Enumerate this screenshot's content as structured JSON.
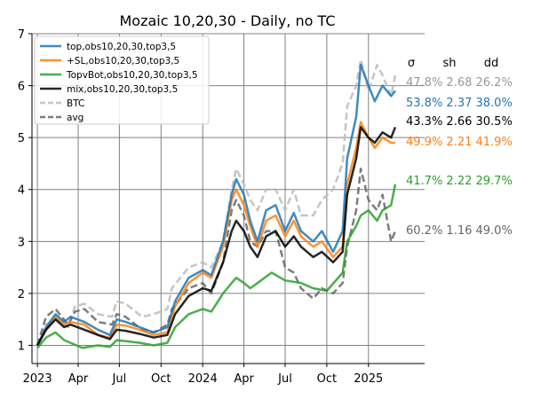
{
  "chart_data": {
    "type": "line",
    "title": "Mozaic 10,20,30 - Daily, no TC",
    "xlabel": "",
    "ylabel": "",
    "xlim": [
      "2022-12-20",
      "2025-05-05"
    ],
    "ylim": [
      0.65,
      7.0
    ],
    "grid": true,
    "legend_position": "top-left",
    "x_tick_labels": [
      {
        "date": "2023-01-01",
        "label": "2023"
      },
      {
        "date": "2023-04-01",
        "label": "Apr"
      },
      {
        "date": "2023-07-01",
        "label": "Jul"
      },
      {
        "date": "2023-10-01",
        "label": "Oct"
      },
      {
        "date": "2024-01-01",
        "label": "2024"
      },
      {
        "date": "2024-04-01",
        "label": "Apr"
      },
      {
        "date": "2024-07-01",
        "label": "Jul"
      },
      {
        "date": "2024-10-01",
        "label": "Oct"
      },
      {
        "date": "2025-01-01",
        "label": "2025"
      }
    ],
    "y_tick_labels": [
      "1",
      "2",
      "3",
      "4",
      "5",
      "6",
      "7"
    ],
    "stats_header": [
      "σ",
      "sh",
      "dd"
    ],
    "series": [
      {
        "name": "top,obs10,20,30,top3,5",
        "color": "#1f77b4",
        "style": "solid",
        "stats": "53.8% 2.37 38.0%",
        "points": [
          [
            "2023-01-01",
            1.0
          ],
          [
            "2023-01-20",
            1.35
          ],
          [
            "2023-02-10",
            1.6
          ],
          [
            "2023-03-01",
            1.45
          ],
          [
            "2023-03-15",
            1.55
          ],
          [
            "2023-04-15",
            1.45
          ],
          [
            "2023-05-15",
            1.3
          ],
          [
            "2023-06-10",
            1.2
          ],
          [
            "2023-06-25",
            1.5
          ],
          [
            "2023-07-15",
            1.45
          ],
          [
            "2023-08-15",
            1.35
          ],
          [
            "2023-09-15",
            1.25
          ],
          [
            "2023-10-15",
            1.35
          ],
          [
            "2023-11-01",
            1.85
          ],
          [
            "2023-12-01",
            2.3
          ],
          [
            "2024-01-01",
            2.45
          ],
          [
            "2024-01-20",
            2.35
          ],
          [
            "2024-02-15",
            3.0
          ],
          [
            "2024-03-05",
            3.9
          ],
          [
            "2024-03-15",
            4.2
          ],
          [
            "2024-04-01",
            3.9
          ],
          [
            "2024-04-15",
            3.4
          ],
          [
            "2024-05-01",
            3.0
          ],
          [
            "2024-05-20",
            3.6
          ],
          [
            "2024-06-10",
            3.7
          ],
          [
            "2024-07-01",
            3.2
          ],
          [
            "2024-07-20",
            3.55
          ],
          [
            "2024-08-05",
            3.2
          ],
          [
            "2024-09-01",
            3.0
          ],
          [
            "2024-09-20",
            3.2
          ],
          [
            "2024-10-15",
            2.8
          ],
          [
            "2024-11-05",
            3.2
          ],
          [
            "2024-11-15",
            4.6
          ],
          [
            "2024-12-05",
            5.4
          ],
          [
            "2024-12-15",
            6.4
          ],
          [
            "2025-01-01",
            6.0
          ],
          [
            "2025-01-15",
            5.7
          ],
          [
            "2025-02-01",
            6.0
          ],
          [
            "2025-02-20",
            5.8
          ],
          [
            "2025-03-01",
            5.9
          ]
        ]
      },
      {
        "name": "+SL,obs10,20,30,top3,5",
        "color": "#ff7f0e",
        "style": "solid",
        "stats": "49.9% 2.21 41.9%",
        "points": [
          [
            "2023-01-01",
            1.0
          ],
          [
            "2023-01-20",
            1.3
          ],
          [
            "2023-02-10",
            1.55
          ],
          [
            "2023-03-01",
            1.4
          ],
          [
            "2023-03-15",
            1.45
          ],
          [
            "2023-04-15",
            1.4
          ],
          [
            "2023-05-15",
            1.2
          ],
          [
            "2023-06-10",
            1.15
          ],
          [
            "2023-06-25",
            1.4
          ],
          [
            "2023-07-15",
            1.38
          ],
          [
            "2023-08-15",
            1.3
          ],
          [
            "2023-09-15",
            1.2
          ],
          [
            "2023-10-15",
            1.25
          ],
          [
            "2023-11-01",
            1.75
          ],
          [
            "2023-12-01",
            2.2
          ],
          [
            "2024-01-01",
            2.4
          ],
          [
            "2024-01-20",
            2.3
          ],
          [
            "2024-02-15",
            2.9
          ],
          [
            "2024-03-05",
            3.8
          ],
          [
            "2024-03-15",
            4.0
          ],
          [
            "2024-04-01",
            3.7
          ],
          [
            "2024-04-15",
            3.3
          ],
          [
            "2024-05-01",
            2.9
          ],
          [
            "2024-05-20",
            3.4
          ],
          [
            "2024-06-10",
            3.5
          ],
          [
            "2024-07-01",
            3.1
          ],
          [
            "2024-07-20",
            3.4
          ],
          [
            "2024-08-05",
            3.1
          ],
          [
            "2024-09-01",
            2.9
          ],
          [
            "2024-09-20",
            3.0
          ],
          [
            "2024-10-15",
            2.7
          ],
          [
            "2024-11-05",
            2.9
          ],
          [
            "2024-11-15",
            4.1
          ],
          [
            "2024-12-05",
            4.8
          ],
          [
            "2024-12-15",
            5.3
          ],
          [
            "2025-01-01",
            5.0
          ],
          [
            "2025-01-15",
            4.8
          ],
          [
            "2025-02-01",
            5.0
          ],
          [
            "2025-02-20",
            4.9
          ],
          [
            "2025-03-01",
            4.9
          ]
        ]
      },
      {
        "name": "TopvBot,obs10,20,30,top3,5",
        "color": "#2ca02c",
        "style": "solid",
        "stats": "41.7% 2.22 29.7%",
        "points": [
          [
            "2023-01-01",
            0.95
          ],
          [
            "2023-01-20",
            1.15
          ],
          [
            "2023-02-10",
            1.25
          ],
          [
            "2023-03-01",
            1.1
          ],
          [
            "2023-03-15",
            1.05
          ],
          [
            "2023-04-10",
            0.95
          ],
          [
            "2023-05-15",
            1.0
          ],
          [
            "2023-06-10",
            0.97
          ],
          [
            "2023-06-25",
            1.1
          ],
          [
            "2023-07-15",
            1.08
          ],
          [
            "2023-08-15",
            1.05
          ],
          [
            "2023-09-15",
            1.0
          ],
          [
            "2023-10-15",
            1.05
          ],
          [
            "2023-11-01",
            1.35
          ],
          [
            "2023-12-01",
            1.6
          ],
          [
            "2024-01-01",
            1.7
          ],
          [
            "2024-01-20",
            1.65
          ],
          [
            "2024-02-15",
            2.0
          ],
          [
            "2024-03-05",
            2.2
          ],
          [
            "2024-03-15",
            2.3
          ],
          [
            "2024-04-01",
            2.2
          ],
          [
            "2024-04-15",
            2.1
          ],
          [
            "2024-05-01",
            2.2
          ],
          [
            "2024-06-01",
            2.4
          ],
          [
            "2024-07-01",
            2.25
          ],
          [
            "2024-08-05",
            2.2
          ],
          [
            "2024-09-01",
            2.1
          ],
          [
            "2024-10-01",
            2.05
          ],
          [
            "2024-11-05",
            2.4
          ],
          [
            "2024-11-15",
            3.0
          ],
          [
            "2024-12-05",
            3.3
          ],
          [
            "2024-12-15",
            3.5
          ],
          [
            "2025-01-01",
            3.6
          ],
          [
            "2025-01-20",
            3.4
          ],
          [
            "2025-02-01",
            3.6
          ],
          [
            "2025-02-20",
            3.7
          ],
          [
            "2025-03-01",
            4.1
          ]
        ]
      },
      {
        "name": "mix,obs10,20,30,top3,5",
        "color": "#000000",
        "style": "solid",
        "stats": "43.3% 2.66 30.5%",
        "points": [
          [
            "2023-01-01",
            1.0
          ],
          [
            "2023-01-20",
            1.3
          ],
          [
            "2023-02-10",
            1.5
          ],
          [
            "2023-03-01",
            1.35
          ],
          [
            "2023-03-15",
            1.4
          ],
          [
            "2023-04-15",
            1.3
          ],
          [
            "2023-05-15",
            1.2
          ],
          [
            "2023-06-10",
            1.12
          ],
          [
            "2023-06-25",
            1.3
          ],
          [
            "2023-07-15",
            1.28
          ],
          [
            "2023-08-15",
            1.22
          ],
          [
            "2023-09-15",
            1.15
          ],
          [
            "2023-10-15",
            1.2
          ],
          [
            "2023-11-01",
            1.6
          ],
          [
            "2023-12-01",
            1.95
          ],
          [
            "2024-01-01",
            2.1
          ],
          [
            "2024-01-20",
            2.05
          ],
          [
            "2024-02-15",
            2.6
          ],
          [
            "2024-03-05",
            3.2
          ],
          [
            "2024-03-15",
            3.4
          ],
          [
            "2024-04-01",
            3.2
          ],
          [
            "2024-04-15",
            2.9
          ],
          [
            "2024-05-01",
            2.7
          ],
          [
            "2024-05-20",
            3.1
          ],
          [
            "2024-06-10",
            3.2
          ],
          [
            "2024-07-01",
            2.9
          ],
          [
            "2024-07-20",
            3.1
          ],
          [
            "2024-08-05",
            2.9
          ],
          [
            "2024-09-01",
            2.7
          ],
          [
            "2024-09-20",
            2.8
          ],
          [
            "2024-10-15",
            2.6
          ],
          [
            "2024-11-05",
            2.8
          ],
          [
            "2024-11-15",
            3.9
          ],
          [
            "2024-12-05",
            4.6
          ],
          [
            "2024-12-15",
            5.2
          ],
          [
            "2025-01-01",
            5.0
          ],
          [
            "2025-01-15",
            4.9
          ],
          [
            "2025-02-01",
            5.1
          ],
          [
            "2025-02-20",
            5.0
          ],
          [
            "2025-03-01",
            5.2
          ]
        ]
      },
      {
        "name": "BTC",
        "color": "#bbbbbb",
        "style": "dashed",
        "stats": "47.8% 2.68 26.2%",
        "points": [
          [
            "2023-01-01",
            1.0
          ],
          [
            "2023-01-20",
            1.4
          ],
          [
            "2023-02-10",
            1.5
          ],
          [
            "2023-03-10",
            1.35
          ],
          [
            "2023-03-25",
            1.75
          ],
          [
            "2023-04-15",
            1.8
          ],
          [
            "2023-05-15",
            1.6
          ],
          [
            "2023-06-15",
            1.55
          ],
          [
            "2023-06-25",
            1.85
          ],
          [
            "2023-07-15",
            1.8
          ],
          [
            "2023-08-20",
            1.55
          ],
          [
            "2023-09-15",
            1.6
          ],
          [
            "2023-10-15",
            1.7
          ],
          [
            "2023-10-25",
            2.1
          ],
          [
            "2023-12-01",
            2.5
          ],
          [
            "2024-01-01",
            2.6
          ],
          [
            "2024-01-20",
            2.5
          ],
          [
            "2024-02-15",
            3.0
          ],
          [
            "2024-03-05",
            4.0
          ],
          [
            "2024-03-15",
            4.4
          ],
          [
            "2024-04-01",
            4.1
          ],
          [
            "2024-04-15",
            3.8
          ],
          [
            "2024-05-01",
            3.6
          ],
          [
            "2024-05-20",
            4.0
          ],
          [
            "2024-06-10",
            4.0
          ],
          [
            "2024-07-01",
            3.6
          ],
          [
            "2024-07-20",
            4.0
          ],
          [
            "2024-08-05",
            3.5
          ],
          [
            "2024-09-01",
            3.5
          ],
          [
            "2024-09-20",
            3.8
          ],
          [
            "2024-10-15",
            4.0
          ],
          [
            "2024-11-05",
            4.5
          ],
          [
            "2024-11-15",
            5.6
          ],
          [
            "2024-12-05",
            6.0
          ],
          [
            "2024-12-15",
            6.5
          ],
          [
            "2025-01-01",
            5.9
          ],
          [
            "2025-01-20",
            6.4
          ],
          [
            "2025-02-01",
            6.2
          ],
          [
            "2025-02-20",
            5.8
          ],
          [
            "2025-03-01",
            6.2
          ]
        ]
      },
      {
        "name": "avg",
        "color": "#666666",
        "style": "dashed",
        "stats": "60.2% 1.16 49.0%",
        "points": [
          [
            "2023-01-01",
            1.0
          ],
          [
            "2023-01-20",
            1.55
          ],
          [
            "2023-02-10",
            1.7
          ],
          [
            "2023-03-10",
            1.4
          ],
          [
            "2023-03-25",
            1.65
          ],
          [
            "2023-04-15",
            1.7
          ],
          [
            "2023-05-15",
            1.45
          ],
          [
            "2023-06-15",
            1.4
          ],
          [
            "2023-06-25",
            1.6
          ],
          [
            "2023-07-15",
            1.55
          ],
          [
            "2023-08-20",
            1.3
          ],
          [
            "2023-09-15",
            1.25
          ],
          [
            "2023-10-15",
            1.4
          ],
          [
            "2023-10-25",
            1.7
          ],
          [
            "2023-12-01",
            2.1
          ],
          [
            "2024-01-01",
            2.2
          ],
          [
            "2024-01-20",
            2.0
          ],
          [
            "2024-02-15",
            2.6
          ],
          [
            "2024-03-05",
            3.6
          ],
          [
            "2024-03-15",
            3.8
          ],
          [
            "2024-04-01",
            3.5
          ],
          [
            "2024-04-15",
            3.0
          ],
          [
            "2024-05-01",
            2.9
          ],
          [
            "2024-05-20",
            3.2
          ],
          [
            "2024-06-10",
            3.2
          ],
          [
            "2024-07-01",
            2.5
          ],
          [
            "2024-07-20",
            2.4
          ],
          [
            "2024-08-05",
            2.1
          ],
          [
            "2024-09-01",
            1.9
          ],
          [
            "2024-09-20",
            2.1
          ],
          [
            "2024-10-15",
            2.0
          ],
          [
            "2024-11-05",
            2.2
          ],
          [
            "2024-11-15",
            2.9
          ],
          [
            "2024-12-05",
            3.6
          ],
          [
            "2024-12-15",
            4.4
          ],
          [
            "2025-01-01",
            3.8
          ],
          [
            "2025-01-20",
            3.6
          ],
          [
            "2025-02-01",
            3.9
          ],
          [
            "2025-02-20",
            3.0
          ],
          [
            "2025-03-01",
            3.2
          ]
        ]
      }
    ],
    "stats_order": [
      4,
      0,
      3,
      1,
      2,
      5
    ]
  }
}
